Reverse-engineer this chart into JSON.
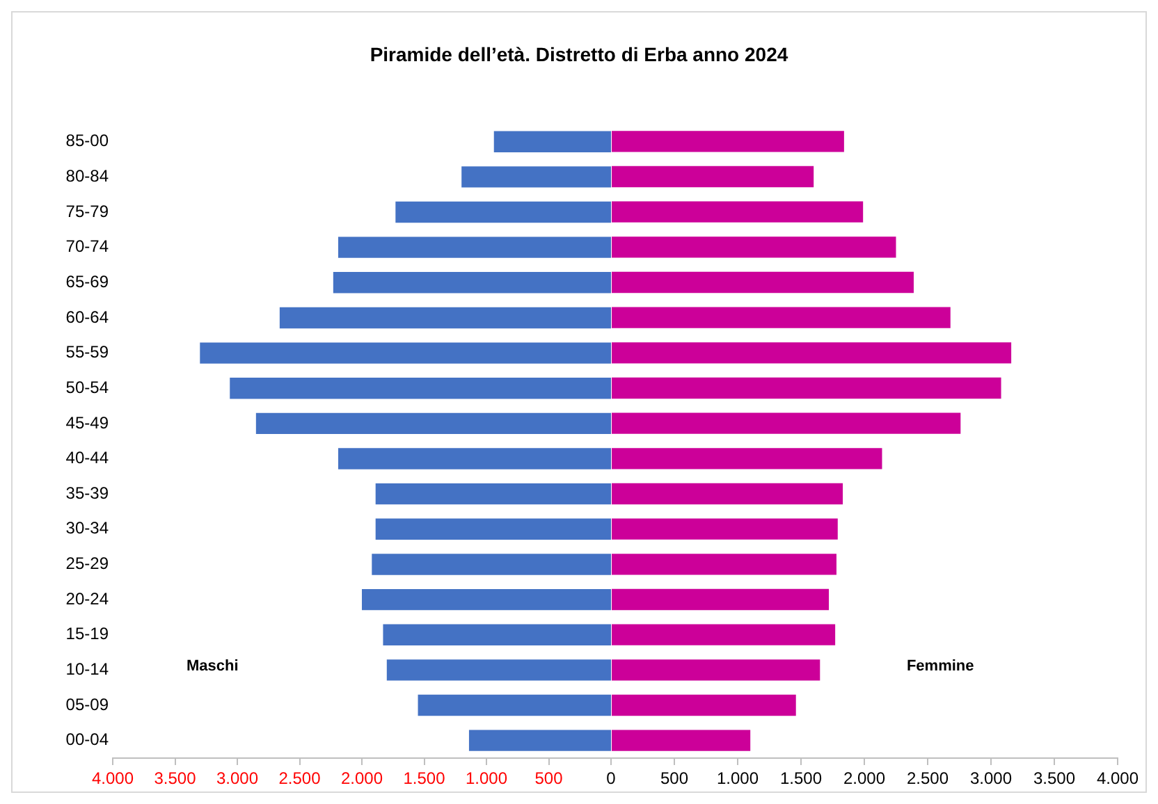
{
  "chart_data": [
    {
      "type": "bar",
      "orientation": "horizontal",
      "title": "Piramide dell’età. Distretto di Erba anno 2024",
      "categories": [
        "85-00",
        "80-84",
        "75-79",
        "70-74",
        "65-69",
        "60-64",
        "55-59",
        "50-54",
        "45-49",
        "40-44",
        "35-39",
        "30-34",
        "25-29",
        "20-24",
        "15-19",
        "10-14",
        "05-09",
        "00-04"
      ],
      "series": [
        {
          "name": "Maschi",
          "color": "#4472c4",
          "values": [
            940,
            1200,
            1730,
            2190,
            2230,
            2660,
            3300,
            3060,
            2850,
            2190,
            1890,
            1890,
            1920,
            2000,
            1830,
            1800,
            1550,
            1140
          ]
        }
      ],
      "xlim": [
        4000,
        0
      ],
      "xticks": [
        {
          "value": 4000,
          "label": "4.000"
        },
        {
          "value": 3500,
          "label": "3.500"
        },
        {
          "value": 3000,
          "label": "3.000"
        },
        {
          "value": 2500,
          "label": "2.500"
        },
        {
          "value": 2000,
          "label": "2.000"
        },
        {
          "value": 1500,
          "label": "1.500"
        },
        {
          "value": 1000,
          "label": "1.000"
        },
        {
          "value": 500,
          "label": "500"
        }
      ],
      "grid": false,
      "legend": false
    },
    {
      "type": "bar",
      "orientation": "horizontal",
      "categories": [
        null,
        null,
        null,
        null,
        null,
        null,
        null,
        null,
        null,
        null,
        null,
        null,
        null,
        null,
        null,
        null,
        null,
        null
      ],
      "series": [
        {
          "name": "Femmine",
          "color": "#cc0099",
          "values": [
            1840,
            1600,
            1990,
            2250,
            2390,
            2680,
            3160,
            3080,
            2760,
            2140,
            1830,
            1790,
            1780,
            1720,
            1770,
            1650,
            1460,
            1100
          ]
        }
      ],
      "xlim": [
        0,
        4000
      ],
      "xticks": [
        {
          "value": 0,
          "label": "0"
        },
        {
          "value": 500,
          "label": "500"
        },
        {
          "value": 1000,
          "label": "1.000"
        },
        {
          "value": 1500,
          "label": "1.500"
        },
        {
          "value": 2000,
          "label": "2.000"
        },
        {
          "value": 2500,
          "label": "2.500"
        },
        {
          "value": 3000,
          "label": "3.000"
        },
        {
          "value": 3500,
          "label": "3.500"
        },
        {
          "value": 4000,
          "label": "4.000"
        }
      ],
      "tick_labels": "x",
      "grid": false,
      "legend": false
    }
  ]
}
